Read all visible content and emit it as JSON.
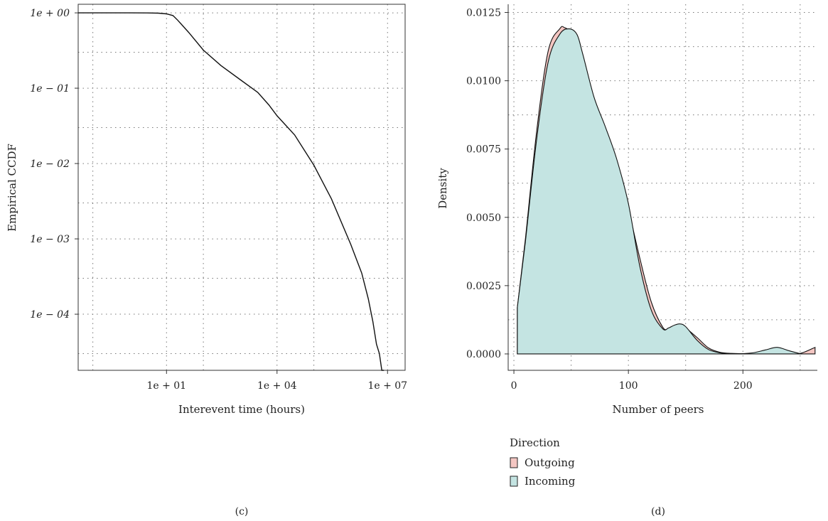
{
  "chart_data": [
    {
      "panel": "(c)",
      "type": "line",
      "xlabel": "Interevent time (hours)",
      "ylabel": "Empirical CCDF",
      "x_scale": "log",
      "y_scale": "log",
      "xlim": [
        0.04,
        30000000.0
      ],
      "ylim": [
        1.8e-05,
        1.3
      ],
      "x_ticks": [
        10,
        10000,
        10000000
      ],
      "x_tick_labels": [
        "1e + 01",
        "1e + 04",
        "1e + 07"
      ],
      "x_minor_grid": [
        0.1,
        100,
        100000
      ],
      "y_ticks": [
        1,
        0.1,
        0.01,
        0.001,
        0.0001
      ],
      "y_tick_labels": [
        "1e + 00",
        "1e − 01",
        "1e − 02",
        "1e − 03",
        "1e − 04"
      ],
      "y_minor_grid": [
        0.3,
        0.03,
        0.003,
        0.0003,
        3e-05
      ],
      "grid": true,
      "series": [
        {
          "color": "#111111",
          "x": [
            0.04,
            1,
            3,
            6,
            10,
            15,
            20,
            40,
            100,
            300,
            1000,
            3000,
            6000,
            10000,
            30000,
            100000,
            300000,
            1000000,
            2000000,
            3000000,
            4000000,
            5000000,
            6000000,
            7000000,
            8000000
          ],
          "y": [
            0.999,
            0.999,
            0.997,
            0.99,
            0.97,
            0.92,
            0.8,
            0.55,
            0.32,
            0.2,
            0.13,
            0.088,
            0.06,
            0.043,
            0.024,
            0.0095,
            0.0034,
            0.00085,
            0.00035,
            0.00016,
            8e-05,
            4e-05,
            3e-05,
            1.8e-05,
            9e-06
          ]
        }
      ]
    },
    {
      "panel": "(d)",
      "type": "area",
      "xlabel": "Number of peers",
      "ylabel": "Density",
      "xlim": [
        -5,
        265
      ],
      "ylim": [
        -0.0006,
        0.0128
      ],
      "x_ticks": [
        0,
        100,
        200
      ],
      "x_tick_labels": [
        "0",
        "100",
        "200"
      ],
      "x_minor_grid": [
        50,
        150,
        250
      ],
      "y_ticks": [
        0,
        0.0025,
        0.005,
        0.0075,
        0.01,
        0.0125
      ],
      "y_tick_labels": [
        "0.0000",
        "0.0025",
        "0.0050",
        "0.0075",
        "0.0100",
        "0.0125"
      ],
      "y_minor_grid": [
        0.00125,
        0.00375,
        0.00625,
        0.00875,
        0.01125
      ],
      "grid": true,
      "legend": {
        "title": "Direction",
        "position": "bottom-left"
      },
      "series": [
        {
          "name": "Outgoing",
          "color": "#f4c6c2",
          "x": [
            3,
            10,
            20,
            30,
            40,
            44,
            50,
            60,
            70,
            80,
            90,
            100,
            110,
            120,
            130,
            135,
            140,
            145,
            150,
            160,
            170,
            180,
            190,
            200,
            210,
            220,
            230,
            240,
            250,
            263
          ],
          "y": [
            0.0017,
            0.0042,
            0.0082,
            0.0111,
            0.0119,
            0.01195,
            0.0117,
            0.0106,
            0.0092,
            0.0081,
            0.0069,
            0.0053,
            0.0035,
            0.0019,
            0.00098,
            0.00092,
            0.001,
            0.00105,
            0.00095,
            0.0006,
            0.00022,
            6e-05,
            2e-05,
            1e-05,
            3e-05,
            0.00012,
            0.00016,
            8e-05,
            2e-05,
            0.00024
          ]
        },
        {
          "name": "Incoming",
          "color": "#c4e4e2",
          "x": [
            3,
            10,
            20,
            30,
            40,
            48,
            55,
            60,
            70,
            80,
            90,
            100,
            110,
            120,
            130,
            135,
            140,
            145,
            150,
            160,
            170,
            180,
            190,
            200,
            210,
            220,
            230,
            240,
            250
          ],
          "y": [
            0.0017,
            0.0041,
            0.0079,
            0.0107,
            0.0117,
            0.0119,
            0.0117,
            0.011,
            0.0094,
            0.0083,
            0.0071,
            0.0055,
            0.0032,
            0.0016,
            0.00092,
            0.00095,
            0.00105,
            0.0011,
            0.001,
            0.0005,
            0.00016,
            4e-05,
            1e-05,
            1e-05,
            5e-05,
            0.00015,
            0.00024,
            0.00012,
            1e-05
          ]
        }
      ]
    }
  ],
  "captions": {
    "left": "(c)",
    "right": "(d)"
  }
}
